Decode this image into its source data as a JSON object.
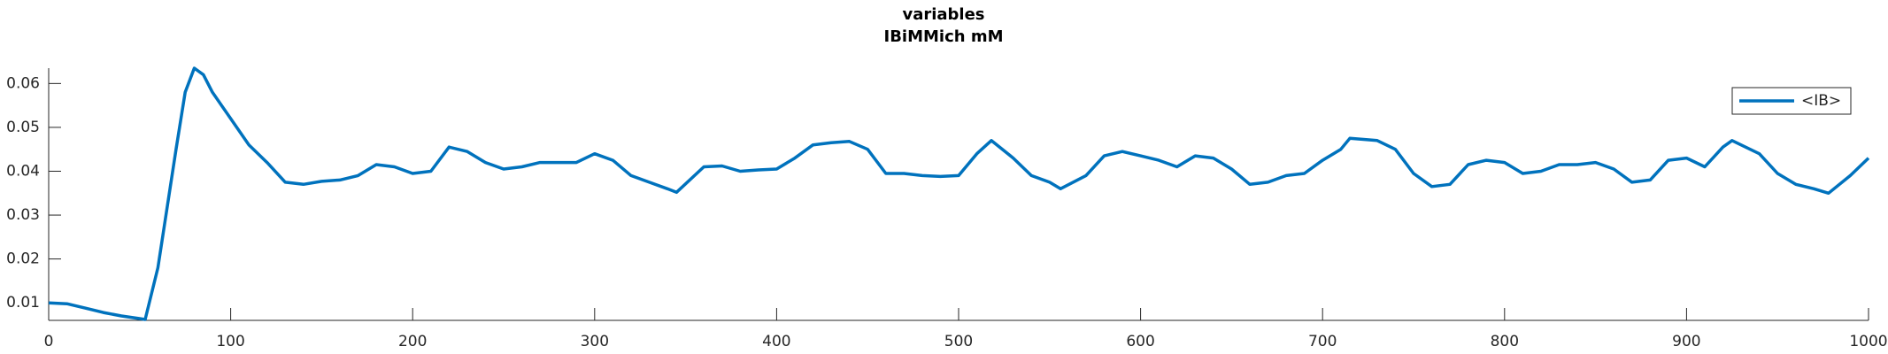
{
  "chart_data": {
    "type": "line",
    "title": "variables",
    "subtitle": "IBiMMich mM",
    "x": [
      0,
      10,
      20,
      30,
      40,
      50,
      53,
      60,
      70,
      75,
      80,
      85,
      90,
      100,
      110,
      120,
      130,
      140,
      150,
      160,
      170,
      180,
      190,
      200,
      210,
      220,
      230,
      240,
      250,
      260,
      270,
      280,
      290,
      300,
      310,
      320,
      330,
      340,
      345,
      360,
      370,
      380,
      390,
      400,
      410,
      420,
      430,
      440,
      450,
      460,
      470,
      480,
      490,
      500,
      510,
      518,
      530,
      540,
      550,
      556,
      570,
      580,
      590,
      600,
      610,
      620,
      630,
      640,
      650,
      660,
      670,
      680,
      690,
      700,
      710,
      715,
      730,
      740,
      750,
      760,
      770,
      780,
      790,
      800,
      810,
      820,
      830,
      840,
      850,
      860,
      870,
      880,
      890,
      900,
      910,
      920,
      925,
      940,
      950,
      960,
      970,
      978,
      990,
      1000
    ],
    "series": [
      {
        "name": "<IB>",
        "color": "#0072BD",
        "values": [
          0.01,
          0.0098,
          0.0088,
          0.0078,
          0.007,
          0.0064,
          0.0062,
          0.018,
          0.045,
          0.058,
          0.0635,
          0.062,
          0.058,
          0.052,
          0.046,
          0.042,
          0.0375,
          0.037,
          0.0377,
          0.038,
          0.039,
          0.0415,
          0.041,
          0.0395,
          0.04,
          0.0455,
          0.0445,
          0.042,
          0.0405,
          0.041,
          0.042,
          0.042,
          0.042,
          0.044,
          0.0425,
          0.039,
          0.0375,
          0.036,
          0.0352,
          0.041,
          0.0412,
          0.04,
          0.0403,
          0.0405,
          0.043,
          0.046,
          0.0465,
          0.0468,
          0.045,
          0.0395,
          0.0395,
          0.039,
          0.0388,
          0.039,
          0.044,
          0.047,
          0.043,
          0.039,
          0.0375,
          0.036,
          0.039,
          0.0435,
          0.0445,
          0.0435,
          0.0425,
          0.041,
          0.0435,
          0.043,
          0.0405,
          0.037,
          0.0375,
          0.039,
          0.0395,
          0.0425,
          0.045,
          0.0475,
          0.047,
          0.045,
          0.0395,
          0.0365,
          0.037,
          0.0415,
          0.0425,
          0.042,
          0.0395,
          0.04,
          0.0415,
          0.0415,
          0.042,
          0.0405,
          0.0375,
          0.038,
          0.0425,
          0.043,
          0.041,
          0.0455,
          0.047,
          0.044,
          0.0395,
          0.037,
          0.036,
          0.035,
          0.039,
          0.043
        ]
      }
    ],
    "xlim": [
      0,
      1000
    ],
    "xticks": [
      0,
      100,
      200,
      300,
      400,
      500,
      600,
      700,
      800,
      900,
      1000
    ],
    "ylim": [
      0.006,
      0.0635
    ],
    "yticks": [
      0.01,
      0.02,
      0.03,
      0.04,
      0.05,
      0.06
    ],
    "legend": "northeast"
  }
}
